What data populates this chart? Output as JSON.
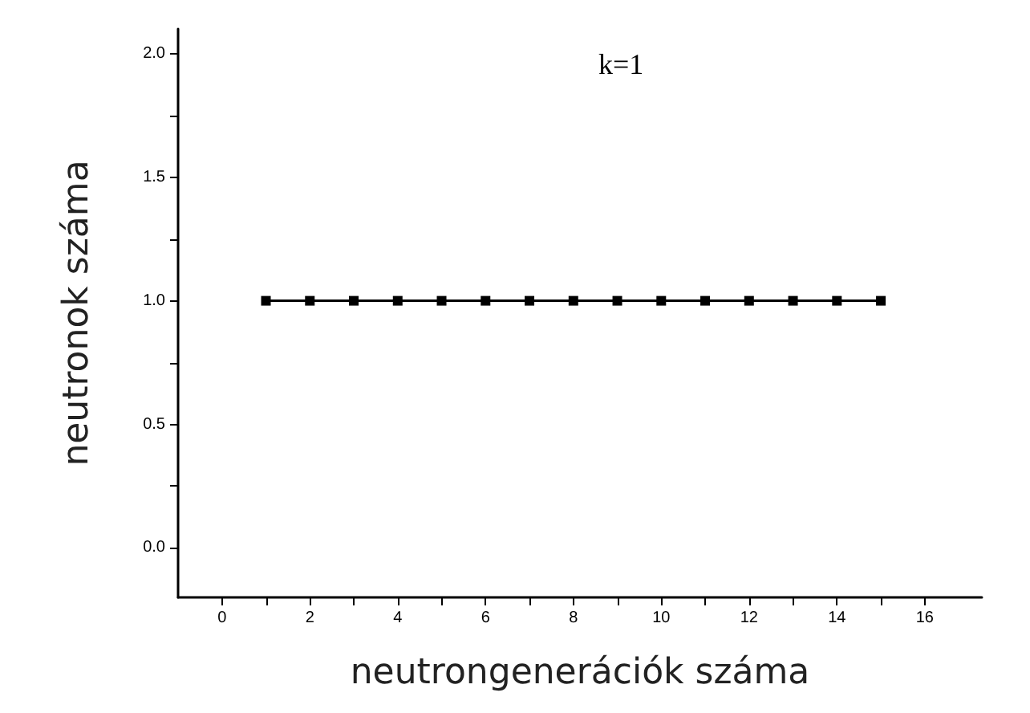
{
  "chart_data": {
    "type": "line",
    "title": "k=1",
    "xlabel": "neutrongenerációk száma",
    "ylabel": "neutronok száma",
    "x": [
      1,
      2,
      3,
      4,
      5,
      6,
      7,
      8,
      9,
      10,
      11,
      12,
      13,
      14,
      15
    ],
    "series": [
      {
        "color": "#000000",
        "values": [
          1,
          1,
          1,
          1,
          1,
          1,
          1,
          1,
          1,
          1,
          1,
          1,
          1,
          1,
          1
        ]
      }
    ],
    "xlim": [
      -1,
      17.3
    ],
    "xticks": [
      0,
      {
        "value": 1,
        "label": null
      },
      2,
      {
        "value": 3,
        "label": null
      },
      4,
      {
        "value": 5,
        "label": null
      },
      6,
      {
        "value": 7,
        "label": null
      },
      8,
      {
        "value": 9,
        "label": null
      },
      10,
      {
        "value": 11,
        "label": null
      },
      12,
      {
        "value": 13,
        "label": null
      },
      14,
      {
        "value": 15,
        "label": null
      },
      16
    ],
    "ylim": [
      -0.2,
      2.1
    ],
    "yticks": [
      {
        "value": 0,
        "label": "0.0"
      },
      {
        "value": 0.25,
        "label": null
      },
      {
        "value": 0.5,
        "label": "0.5"
      },
      {
        "value": 0.75,
        "label": null
      },
      {
        "value": 1,
        "label": "1.0"
      },
      {
        "value": 1.25,
        "label": null
      },
      {
        "value": 1.5,
        "label": "1.5"
      },
      {
        "value": 1.75,
        "label": null
      },
      {
        "value": 2,
        "label": "2.0"
      }
    ],
    "marker": "square",
    "line_style": "solid"
  }
}
